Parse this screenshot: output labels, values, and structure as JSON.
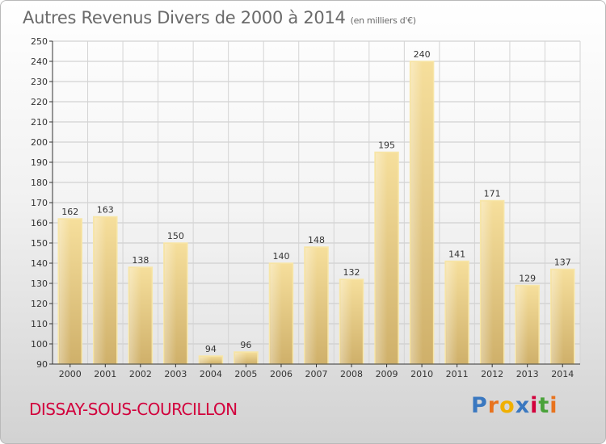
{
  "header": {
    "title": "Autres Revenus Divers de 2000 à 2014",
    "unit": "(en milliers d'€)"
  },
  "footer": {
    "commune": "DISSAY-SOUS-COURCILLON"
  },
  "logo": {
    "letters": [
      "P",
      "r",
      "o",
      "x",
      "i",
      "t",
      "i"
    ],
    "colors": [
      "#3a78c0",
      "#e8731e",
      "#f0b000",
      "#3a78c0",
      "#d2003c",
      "#4aa23a",
      "#e8731e"
    ]
  },
  "colors": {
    "bar": "#eed591",
    "bar_edge": "#f7e6a8",
    "axis": "#333333",
    "label": "#333333"
  },
  "chart_data": {
    "type": "bar",
    "title": "Autres Revenus Divers de 2000 à 2014",
    "ylabel": "",
    "xlabel": "",
    "categories": [
      "2000",
      "2001",
      "2002",
      "2003",
      "2004",
      "2005",
      "2006",
      "2007",
      "2008",
      "2009",
      "2010",
      "2011",
      "2012",
      "2013",
      "2014"
    ],
    "values": [
      162,
      163,
      138,
      150,
      94,
      96,
      140,
      148,
      132,
      195,
      240,
      141,
      171,
      129,
      137
    ],
    "ylim": [
      90,
      250
    ],
    "yticks": [
      90,
      100,
      110,
      120,
      130,
      140,
      150,
      160,
      170,
      180,
      190,
      200,
      210,
      220,
      230,
      240,
      250
    ],
    "grid": true,
    "data_labels": true
  }
}
